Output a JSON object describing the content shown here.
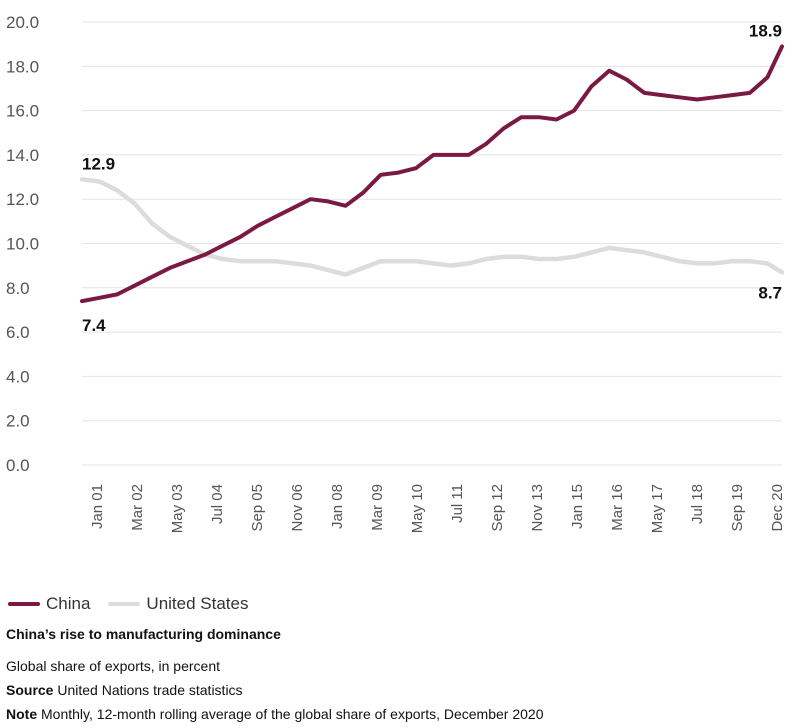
{
  "chart_data": {
    "type": "line",
    "title": "China’s rise to manufacturing dominance",
    "subtitle": "Global share of exports, in percent",
    "source_label": "Source",
    "source_text": "United Nations trade statistics",
    "note_label": "Note",
    "note_text": "Monthly, 12-month rolling average of the global share of exports, December 2020",
    "ylim": [
      0,
      20
    ],
    "y_ticks": [
      "0.0",
      "2.0",
      "4.0",
      "6.0",
      "8.0",
      "10.0",
      "12.0",
      "14.0",
      "16.0",
      "18.0",
      "20.0"
    ],
    "x_ticks": [
      "Jan 01",
      "Mar 02",
      "May 03",
      "Jul 04",
      "Sep 05",
      "Nov 06",
      "Jan 08",
      "Mar 09",
      "May 10",
      "Jul 11",
      "Sep 12",
      "Nov 13",
      "Jan 15",
      "Mar 16",
      "May 17",
      "Jul 18",
      "Sep 19",
      "Dec 20"
    ],
    "x": [
      "2001-01",
      "2001-07",
      "2002-01",
      "2002-07",
      "2003-01",
      "2003-07",
      "2004-01",
      "2004-07",
      "2005-01",
      "2005-07",
      "2006-01",
      "2006-07",
      "2007-01",
      "2007-07",
      "2008-01",
      "2008-07",
      "2009-01",
      "2009-07",
      "2010-01",
      "2010-07",
      "2011-01",
      "2011-07",
      "2012-01",
      "2012-07",
      "2013-01",
      "2013-07",
      "2014-01",
      "2014-07",
      "2015-01",
      "2015-07",
      "2016-01",
      "2016-07",
      "2017-01",
      "2017-07",
      "2018-01",
      "2018-07",
      "2019-01",
      "2019-07",
      "2020-01",
      "2020-07",
      "2020-12"
    ],
    "series": [
      {
        "name": "China",
        "color": "#7a1a44",
        "values": [
          7.4,
          7.55,
          7.7,
          8.1,
          8.5,
          8.9,
          9.2,
          9.5,
          9.9,
          10.3,
          10.8,
          11.2,
          11.6,
          12.0,
          11.9,
          11.7,
          12.3,
          13.1,
          13.2,
          13.4,
          14.0,
          14.0,
          14.0,
          14.5,
          15.2,
          15.7,
          15.7,
          15.6,
          16.0,
          17.1,
          17.8,
          17.4,
          16.8,
          16.7,
          16.6,
          16.5,
          16.6,
          16.7,
          16.8,
          17.5,
          18.9
        ]
      },
      {
        "name": "United States",
        "color": "#dcdcdc",
        "values": [
          12.9,
          12.8,
          12.4,
          11.8,
          10.9,
          10.3,
          9.9,
          9.5,
          9.3,
          9.2,
          9.2,
          9.2,
          9.1,
          9.0,
          8.8,
          8.6,
          8.9,
          9.2,
          9.2,
          9.2,
          9.1,
          9.0,
          9.1,
          9.3,
          9.4,
          9.4,
          9.3,
          9.3,
          9.4,
          9.6,
          9.8,
          9.7,
          9.6,
          9.4,
          9.2,
          9.1,
          9.1,
          9.2,
          9.2,
          9.1,
          8.7
        ]
      }
    ],
    "annotations": [
      {
        "text": "7.4",
        "series": 0,
        "point": "start"
      },
      {
        "text": "18.9",
        "series": 0,
        "point": "end"
      },
      {
        "text": "12.9",
        "series": 1,
        "point": "start"
      },
      {
        "text": "8.7",
        "series": 1,
        "point": "end"
      }
    ],
    "grid": true,
    "legend_position": "bottom-left"
  }
}
